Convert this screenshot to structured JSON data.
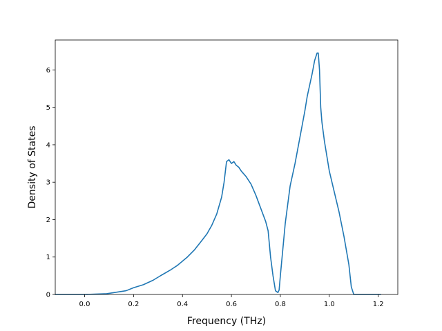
{
  "chart_data": {
    "type": "line",
    "title": "",
    "xlabel": "Frequency (THz)",
    "ylabel": "Density of States",
    "xlim": [
      -0.12,
      1.28
    ],
    "ylim": [
      0,
      6.8
    ],
    "xticks": [
      0.0,
      0.2,
      0.4,
      0.6,
      0.8,
      1.0,
      1.2
    ],
    "xtick_labels": [
      "0.0",
      "0.2",
      "0.4",
      "0.6",
      "0.8",
      "1.0",
      "1.2"
    ],
    "yticks": [
      0,
      1,
      2,
      3,
      4,
      5,
      6
    ],
    "ytick_labels": [
      "0",
      "1",
      "2",
      "3",
      "4",
      "5",
      "6"
    ],
    "grid": false,
    "series": [
      {
        "color": "#1f77b4",
        "x": [
          -0.12,
          -0.05,
          0.0,
          0.05,
          0.09,
          0.12,
          0.17,
          0.2,
          0.24,
          0.28,
          0.31,
          0.35,
          0.38,
          0.42,
          0.45,
          0.48,
          0.5,
          0.52,
          0.54,
          0.56,
          0.57,
          0.58,
          0.59,
          0.6,
          0.61,
          0.62,
          0.63,
          0.64,
          0.66,
          0.68,
          0.7,
          0.72,
          0.74,
          0.75,
          0.76,
          0.77,
          0.78,
          0.79,
          0.795,
          0.8,
          0.81,
          0.82,
          0.83,
          0.84,
          0.86,
          0.88,
          0.9,
          0.91,
          0.92,
          0.93,
          0.94,
          0.95,
          0.955,
          0.96,
          0.965,
          0.97,
          0.98,
          0.99,
          1.0,
          1.02,
          1.04,
          1.06,
          1.08,
          1.09,
          1.1,
          1.105,
          1.11,
          1.15,
          1.21
        ],
        "y": [
          0.0,
          0.0,
          0.0,
          0.01,
          0.02,
          0.05,
          0.1,
          0.18,
          0.26,
          0.38,
          0.5,
          0.65,
          0.78,
          1.0,
          1.2,
          1.45,
          1.62,
          1.85,
          2.15,
          2.6,
          3.0,
          3.55,
          3.6,
          3.5,
          3.55,
          3.45,
          3.4,
          3.3,
          3.15,
          2.95,
          2.65,
          2.3,
          1.95,
          1.7,
          1.0,
          0.5,
          0.1,
          0.05,
          0.12,
          0.5,
          1.2,
          1.9,
          2.4,
          2.9,
          3.5,
          4.2,
          4.9,
          5.3,
          5.6,
          5.9,
          6.25,
          6.45,
          6.45,
          6.0,
          5.0,
          4.6,
          4.1,
          3.7,
          3.3,
          2.75,
          2.2,
          1.55,
          0.8,
          0.2,
          0.0,
          0.0,
          0.0,
          0.0,
          0.0
        ]
      }
    ]
  }
}
